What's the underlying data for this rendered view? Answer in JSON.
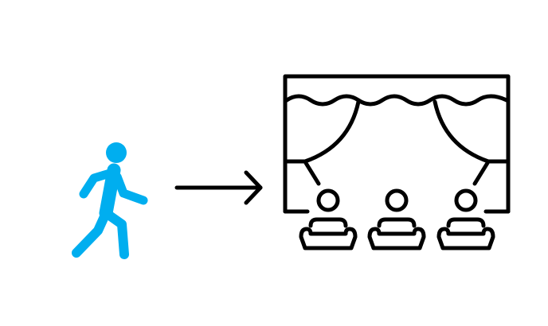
{
  "diagram": {
    "icons": [
      {
        "name": "walking-person-icon",
        "color": "#00AEEF"
      },
      {
        "name": "right-arrow-icon",
        "color": "#000000"
      },
      {
        "name": "theater-stage-icon",
        "color": "#000000"
      }
    ],
    "audience_count": 3
  }
}
